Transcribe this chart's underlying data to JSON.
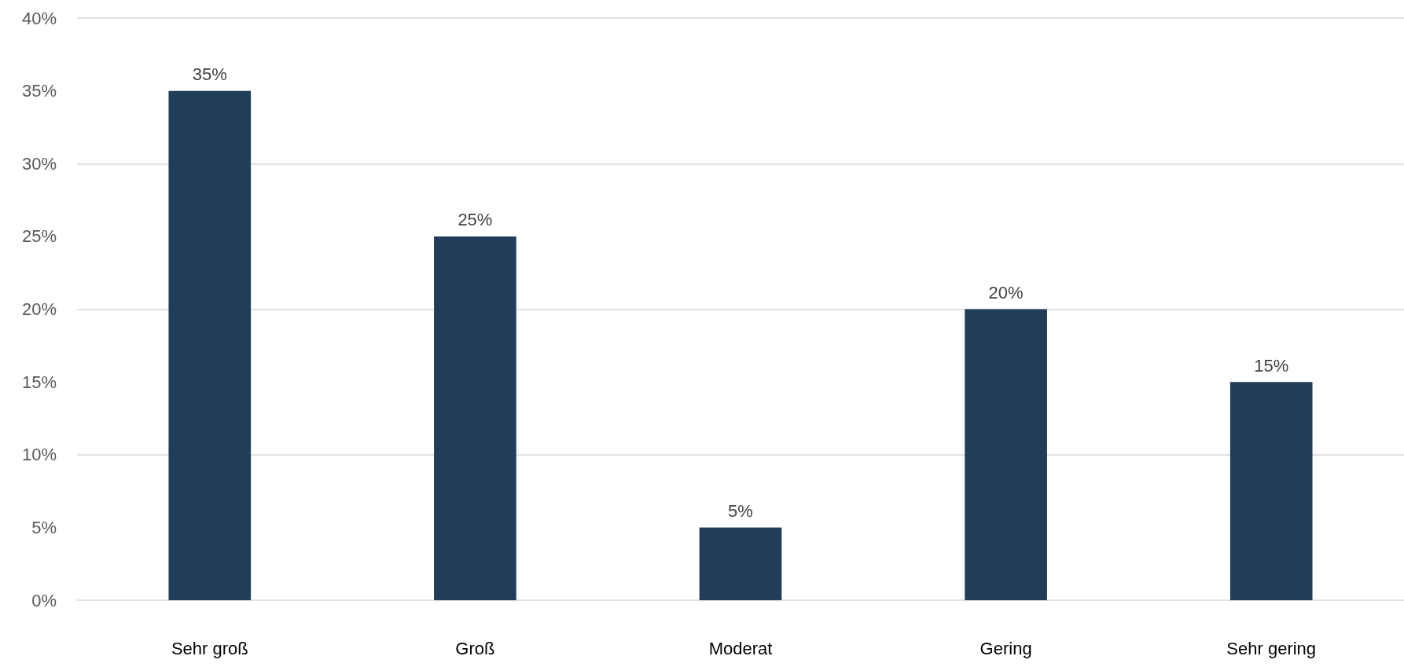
{
  "chart_data": {
    "type": "bar",
    "categories": [
      "Sehr groß",
      "Groß",
      "Moderat",
      "Gering",
      "Sehr gering"
    ],
    "values": [
      35,
      25,
      5,
      20,
      15
    ],
    "value_labels": [
      "35%",
      "25%",
      "5%",
      "20%",
      "15%"
    ],
    "color": "#213d5a",
    "ylim": [
      0,
      40
    ],
    "yticks": [
      {
        "value": 0,
        "label": "0%"
      },
      {
        "value": 5,
        "label": "5%"
      },
      {
        "value": 10,
        "label": "10%"
      },
      {
        "value": 15,
        "label": "15%"
      },
      {
        "value": 20,
        "label": "20%"
      },
      {
        "value": 25,
        "label": "25%"
      },
      {
        "value": 30,
        "label": "30%"
      },
      {
        "value": 35,
        "label": "35%"
      },
      {
        "value": 40,
        "label": "40%"
      }
    ],
    "grid": "y"
  }
}
